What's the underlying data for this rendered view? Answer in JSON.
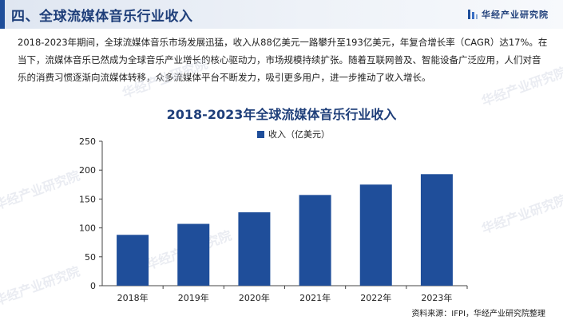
{
  "header": {
    "title": "四、全球流媒体音乐行业收入",
    "brand": "华经产业研究院",
    "colors": {
      "accent": "#1f4e9a",
      "title_text": "#1f3f7a"
    }
  },
  "intro_text": "2018-2023年期间，全球流媒体音乐市场发展迅猛，收入从88亿美元一路攀升至193亿美元，年复合增长率（CAGR）达17%。在当下，流媒体音乐已然成为全球音乐产业增长的核心驱动力，市场规模持续扩张。随着互联网普及、智能设备广泛应用，人们对音乐的消费习惯逐渐向流媒体转移，众多流媒体平台不断发力，吸引更多用户，进一步推动了收入增长。",
  "watermark": "华经产业研究院",
  "chart_data": {
    "type": "bar",
    "title": "2018-2023年全球流媒体音乐行业收入",
    "categories": [
      "2018年",
      "2019年",
      "2020年",
      "2021年",
      "2022年",
      "2023年"
    ],
    "series": [
      {
        "name": "收入（亿美元）",
        "values": [
          88,
          107,
          127,
          157,
          175,
          193
        ],
        "color": "#1f4e9a"
      }
    ],
    "ylim": [
      0,
      250
    ],
    "yticks": [
      0,
      50,
      100,
      150,
      200,
      250
    ],
    "grid": false,
    "legend": "top-center"
  },
  "source": "资料来源：IFPI，华经产业研究院整理"
}
